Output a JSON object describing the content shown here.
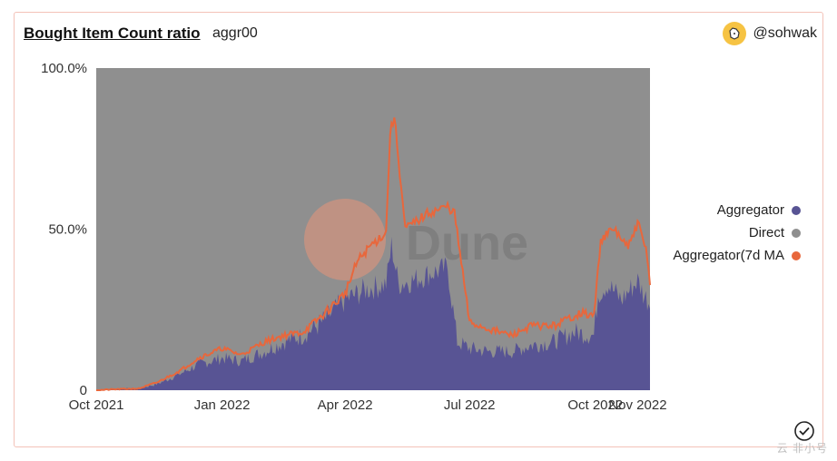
{
  "header": {
    "title": "Bought Item Count ratio",
    "subtitle": "aggr00",
    "author": "@sohwak"
  },
  "watermark": {
    "text": "Dune",
    "corner_text": "云 非小号"
  },
  "colors": {
    "aggregator": "#585494",
    "direct": "#8f8f8f",
    "ma": "#e8673c"
  },
  "chart_data": {
    "type": "area",
    "title": "Bought Item Count ratio",
    "x_tick_labels": [
      "Oct 2021",
      "Jan 2022",
      "Apr 2022",
      "Jul 2022",
      "Oct 2022",
      "Nov 2022"
    ],
    "x_ticks": [
      "2021-10-01",
      "2022-01-01",
      "2022-04-01",
      "2022-07-01",
      "2022-10-01",
      "2022-11-01"
    ],
    "xlim": [
      "2021-10-01",
      "2022-11-10"
    ],
    "y_tick_labels": [
      "0",
      "50.0%",
      "100.0%"
    ],
    "y_ticks": [
      0,
      50,
      100
    ],
    "ylim": [
      0,
      100
    ],
    "stacked": true,
    "legend_position": "right",
    "series": [
      {
        "name": "Aggregator",
        "color": "#585494",
        "kind": "area",
        "x": [
          "2021-10-01",
          "2021-10-15",
          "2021-11-01",
          "2021-11-15",
          "2021-12-01",
          "2021-12-15",
          "2022-01-01",
          "2022-01-15",
          "2022-02-01",
          "2022-02-15",
          "2022-03-01",
          "2022-03-15",
          "2022-04-01",
          "2022-04-15",
          "2022-05-01",
          "2022-05-05",
          "2022-05-10",
          "2022-05-20",
          "2022-06-01",
          "2022-06-15",
          "2022-06-22",
          "2022-07-01",
          "2022-07-15",
          "2022-08-01",
          "2022-08-15",
          "2022-09-01",
          "2022-09-15",
          "2022-09-30",
          "2022-10-03",
          "2022-10-10",
          "2022-10-20",
          "2022-11-01",
          "2022-11-05",
          "2022-11-10"
        ],
        "values": [
          0,
          0.3,
          0.5,
          2,
          5,
          8,
          10,
          9,
          12,
          15,
          17,
          21,
          28,
          31,
          33,
          45,
          33,
          34,
          36,
          38,
          15,
          13,
          12,
          12,
          14,
          15,
          18,
          17,
          30,
          33,
          28,
          34,
          30,
          27
        ]
      },
      {
        "name": "Direct",
        "color": "#8f8f8f",
        "kind": "area",
        "x": [
          "2021-10-01",
          "2022-11-10"
        ],
        "values": [
          100,
          73
        ]
      },
      {
        "name": "Aggregator(7d MA",
        "color": "#e8673c",
        "kind": "line",
        "x": [
          "2021-10-01",
          "2021-10-15",
          "2021-11-01",
          "2021-11-15",
          "2021-12-01",
          "2021-12-15",
          "2022-01-01",
          "2022-01-15",
          "2022-02-01",
          "2022-02-15",
          "2022-03-01",
          "2022-03-15",
          "2022-04-01",
          "2022-04-10",
          "2022-04-20",
          "2022-05-01",
          "2022-05-04",
          "2022-05-07",
          "2022-05-15",
          "2022-06-01",
          "2022-06-15",
          "2022-06-20",
          "2022-07-01",
          "2022-07-15",
          "2022-08-01",
          "2022-08-15",
          "2022-09-01",
          "2022-09-10",
          "2022-09-20",
          "2022-09-30",
          "2022-10-05",
          "2022-10-15",
          "2022-10-25",
          "2022-11-01",
          "2022-11-08",
          "2022-11-10"
        ],
        "values": [
          0,
          0.3,
          0.5,
          2.5,
          6,
          10,
          13,
          11,
          15,
          17,
          18,
          23,
          30,
          40,
          45,
          49,
          80,
          85,
          50,
          55,
          57,
          55,
          21,
          19,
          17,
          20,
          20,
          22,
          24,
          23,
          47,
          50,
          44,
          52,
          42,
          33
        ]
      }
    ]
  }
}
